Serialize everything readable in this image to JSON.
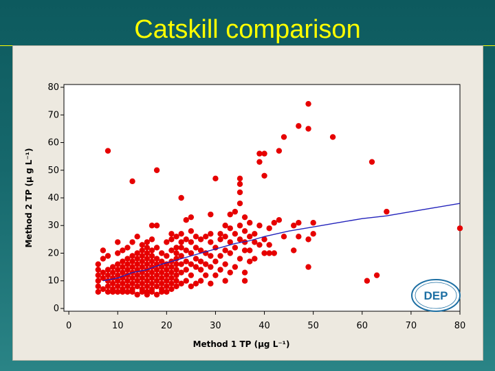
{
  "slide": {
    "title": "Catskill comparison"
  },
  "colors": {
    "points": "#e60000",
    "fit_line": "#2222bb",
    "title": "#ffff00",
    "logo": "#1d6fa3"
  },
  "logo": {
    "text": "DEP",
    "icon": "dep-logo-icon"
  },
  "chart_data": {
    "type": "scatter",
    "title": "",
    "xlabel": "Method 1 TP (µg L⁻¹)",
    "ylabel": "Method 2 TP (µ g L⁻¹)",
    "xlim": [
      -1,
      80
    ],
    "ylim": [
      -1,
      81
    ],
    "xticks": [
      0,
      10,
      20,
      30,
      40,
      50,
      60,
      70,
      80
    ],
    "yticks": [
      0,
      10,
      20,
      30,
      40,
      50,
      60,
      70,
      80
    ],
    "grid": false,
    "legend": "none",
    "series": [
      {
        "kind": "points",
        "points": [
          [
            6,
            6
          ],
          [
            6,
            8
          ],
          [
            6,
            10
          ],
          [
            6,
            12
          ],
          [
            6,
            14
          ],
          [
            6,
            16
          ],
          [
            7,
            7
          ],
          [
            7,
            11
          ],
          [
            7,
            13
          ],
          [
            7,
            21
          ],
          [
            7,
            18
          ],
          [
            8,
            6
          ],
          [
            8,
            8
          ],
          [
            8,
            10
          ],
          [
            8,
            12
          ],
          [
            8,
            14
          ],
          [
            8,
            19
          ],
          [
            8,
            57
          ],
          [
            9,
            6
          ],
          [
            9,
            7
          ],
          [
            9,
            9
          ],
          [
            9,
            11
          ],
          [
            9,
            13
          ],
          [
            9,
            15
          ],
          [
            10,
            6
          ],
          [
            10,
            8
          ],
          [
            10,
            10
          ],
          [
            10,
            12
          ],
          [
            10,
            14
          ],
          [
            10,
            16
          ],
          [
            10,
            20
          ],
          [
            10,
            24
          ],
          [
            11,
            6
          ],
          [
            11,
            7
          ],
          [
            11,
            9
          ],
          [
            11,
            11
          ],
          [
            11,
            13
          ],
          [
            11,
            15
          ],
          [
            11,
            17
          ],
          [
            11,
            21
          ],
          [
            12,
            6
          ],
          [
            12,
            8
          ],
          [
            12,
            10
          ],
          [
            12,
            12
          ],
          [
            12,
            14
          ],
          [
            12,
            16
          ],
          [
            12,
            18
          ],
          [
            12,
            22
          ],
          [
            13,
            6
          ],
          [
            13,
            7
          ],
          [
            13,
            9
          ],
          [
            13,
            11
          ],
          [
            13,
            13
          ],
          [
            13,
            15
          ],
          [
            13,
            17
          ],
          [
            13,
            19
          ],
          [
            13,
            24
          ],
          [
            13,
            46
          ],
          [
            14,
            5
          ],
          [
            14,
            8
          ],
          [
            14,
            10
          ],
          [
            14,
            12
          ],
          [
            14,
            14
          ],
          [
            14,
            16
          ],
          [
            14,
            18
          ],
          [
            14,
            20
          ],
          [
            14,
            26
          ],
          [
            15,
            6
          ],
          [
            15,
            7
          ],
          [
            15,
            9
          ],
          [
            15,
            11
          ],
          [
            15,
            13
          ],
          [
            15,
            15
          ],
          [
            15,
            17
          ],
          [
            15,
            19
          ],
          [
            15,
            21
          ],
          [
            15,
            23
          ],
          [
            16,
            5
          ],
          [
            16,
            6
          ],
          [
            16,
            8
          ],
          [
            16,
            10
          ],
          [
            16,
            12
          ],
          [
            16,
            14
          ],
          [
            16,
            16
          ],
          [
            16,
            18
          ],
          [
            16,
            20
          ],
          [
            16,
            24
          ],
          [
            16,
            22
          ],
          [
            17,
            6
          ],
          [
            17,
            7
          ],
          [
            17,
            9
          ],
          [
            17,
            11
          ],
          [
            17,
            13
          ],
          [
            17,
            15
          ],
          [
            17,
            17
          ],
          [
            17,
            19
          ],
          [
            17,
            21
          ],
          [
            17,
            25
          ],
          [
            17,
            30
          ],
          [
            18,
            5
          ],
          [
            18,
            8
          ],
          [
            18,
            10
          ],
          [
            18,
            12
          ],
          [
            18,
            14
          ],
          [
            18,
            16
          ],
          [
            18,
            18
          ],
          [
            18,
            22
          ],
          [
            18,
            30
          ],
          [
            18,
            50
          ],
          [
            19,
            6
          ],
          [
            19,
            7
          ],
          [
            19,
            9
          ],
          [
            19,
            11
          ],
          [
            19,
            13
          ],
          [
            19,
            15
          ],
          [
            19,
            17
          ],
          [
            19,
            20
          ],
          [
            20,
            6
          ],
          [
            20,
            8
          ],
          [
            20,
            10
          ],
          [
            20,
            12
          ],
          [
            20,
            14
          ],
          [
            20,
            16
          ],
          [
            20,
            19
          ],
          [
            20,
            24
          ],
          [
            21,
            7
          ],
          [
            21,
            9
          ],
          [
            21,
            11
          ],
          [
            21,
            13
          ],
          [
            21,
            15
          ],
          [
            21,
            17
          ],
          [
            21,
            21
          ],
          [
            21,
            25
          ],
          [
            21,
            27
          ],
          [
            22,
            8
          ],
          [
            22,
            10
          ],
          [
            22,
            12
          ],
          [
            22,
            14
          ],
          [
            22,
            16
          ],
          [
            22,
            18
          ],
          [
            22,
            20
          ],
          [
            22,
            22
          ],
          [
            22,
            26
          ],
          [
            23,
            9
          ],
          [
            23,
            13
          ],
          [
            23,
            16
          ],
          [
            23,
            19
          ],
          [
            23,
            22
          ],
          [
            23,
            24
          ],
          [
            23,
            27
          ],
          [
            23,
            40
          ],
          [
            24,
            10
          ],
          [
            24,
            14
          ],
          [
            24,
            17
          ],
          [
            24,
            21
          ],
          [
            24,
            25
          ],
          [
            24,
            32
          ],
          [
            25,
            8
          ],
          [
            25,
            12
          ],
          [
            25,
            16
          ],
          [
            25,
            20
          ],
          [
            25,
            24
          ],
          [
            25,
            28
          ],
          [
            25,
            33
          ],
          [
            26,
            9
          ],
          [
            26,
            15
          ],
          [
            26,
            18
          ],
          [
            26,
            22
          ],
          [
            26,
            26
          ],
          [
            27,
            10
          ],
          [
            27,
            14
          ],
          [
            27,
            17
          ],
          [
            27,
            21
          ],
          [
            27,
            25
          ],
          [
            28,
            12
          ],
          [
            28,
            16
          ],
          [
            28,
            20
          ],
          [
            28,
            26
          ],
          [
            29,
            9
          ],
          [
            29,
            15
          ],
          [
            29,
            19
          ],
          [
            29,
            24
          ],
          [
            29,
            27
          ],
          [
            29,
            34
          ],
          [
            30,
            12
          ],
          [
            30,
            17
          ],
          [
            30,
            22
          ],
          [
            30,
            47
          ],
          [
            31,
            14
          ],
          [
            31,
            19
          ],
          [
            31,
            25
          ],
          [
            31,
            27
          ],
          [
            32,
            10
          ],
          [
            32,
            16
          ],
          [
            32,
            21
          ],
          [
            32,
            26
          ],
          [
            32,
            30
          ],
          [
            33,
            13
          ],
          [
            33,
            20
          ],
          [
            33,
            24
          ],
          [
            33,
            29
          ],
          [
            33,
            34
          ],
          [
            34,
            15
          ],
          [
            34,
            22
          ],
          [
            34,
            27
          ],
          [
            34,
            35
          ],
          [
            35,
            18
          ],
          [
            35,
            25
          ],
          [
            35,
            30
          ],
          [
            35,
            38
          ],
          [
            35,
            42
          ],
          [
            35,
            45
          ],
          [
            35,
            47
          ],
          [
            36,
            10
          ],
          [
            36,
            13
          ],
          [
            36,
            21
          ],
          [
            36,
            24
          ],
          [
            36,
            28
          ],
          [
            36,
            33
          ],
          [
            37,
            17
          ],
          [
            37,
            21
          ],
          [
            37,
            26
          ],
          [
            37,
            31
          ],
          [
            38,
            18
          ],
          [
            38,
            24
          ],
          [
            38,
            27
          ],
          [
            39,
            23
          ],
          [
            39,
            30
          ],
          [
            39,
            53
          ],
          [
            39,
            56
          ],
          [
            40,
            20
          ],
          [
            40,
            25
          ],
          [
            40,
            48
          ],
          [
            40,
            56
          ],
          [
            41,
            20
          ],
          [
            41,
            23
          ],
          [
            41,
            29
          ],
          [
            42,
            20
          ],
          [
            42,
            31
          ],
          [
            43,
            32
          ],
          [
            43,
            57
          ],
          [
            44,
            26
          ],
          [
            44,
            62
          ],
          [
            46,
            21
          ],
          [
            46,
            30
          ],
          [
            47,
            26
          ],
          [
            47,
            66
          ],
          [
            47,
            31
          ],
          [
            49,
            25
          ],
          [
            49,
            15
          ],
          [
            49,
            65
          ],
          [
            49,
            74
          ],
          [
            50,
            31
          ],
          [
            50,
            27
          ],
          [
            54,
            62
          ],
          [
            61,
            10
          ],
          [
            62,
            53
          ],
          [
            63,
            12
          ],
          [
            65,
            35
          ],
          [
            80,
            29
          ]
        ]
      },
      {
        "kind": "fit-line",
        "points": [
          [
            7,
            10
          ],
          [
            10,
            11
          ],
          [
            13,
            13
          ],
          [
            16,
            14
          ],
          [
            19,
            16
          ],
          [
            22,
            17.5
          ],
          [
            25,
            19
          ],
          [
            28,
            20.5
          ],
          [
            31,
            22
          ],
          [
            34,
            23.5
          ],
          [
            37,
            24.5
          ],
          [
            40,
            26
          ],
          [
            45,
            28
          ],
          [
            50,
            29.5
          ],
          [
            55,
            31
          ],
          [
            60,
            32.5
          ],
          [
            65,
            33.5
          ],
          [
            70,
            35
          ],
          [
            75,
            36.5
          ],
          [
            80,
            38
          ]
        ]
      }
    ]
  }
}
